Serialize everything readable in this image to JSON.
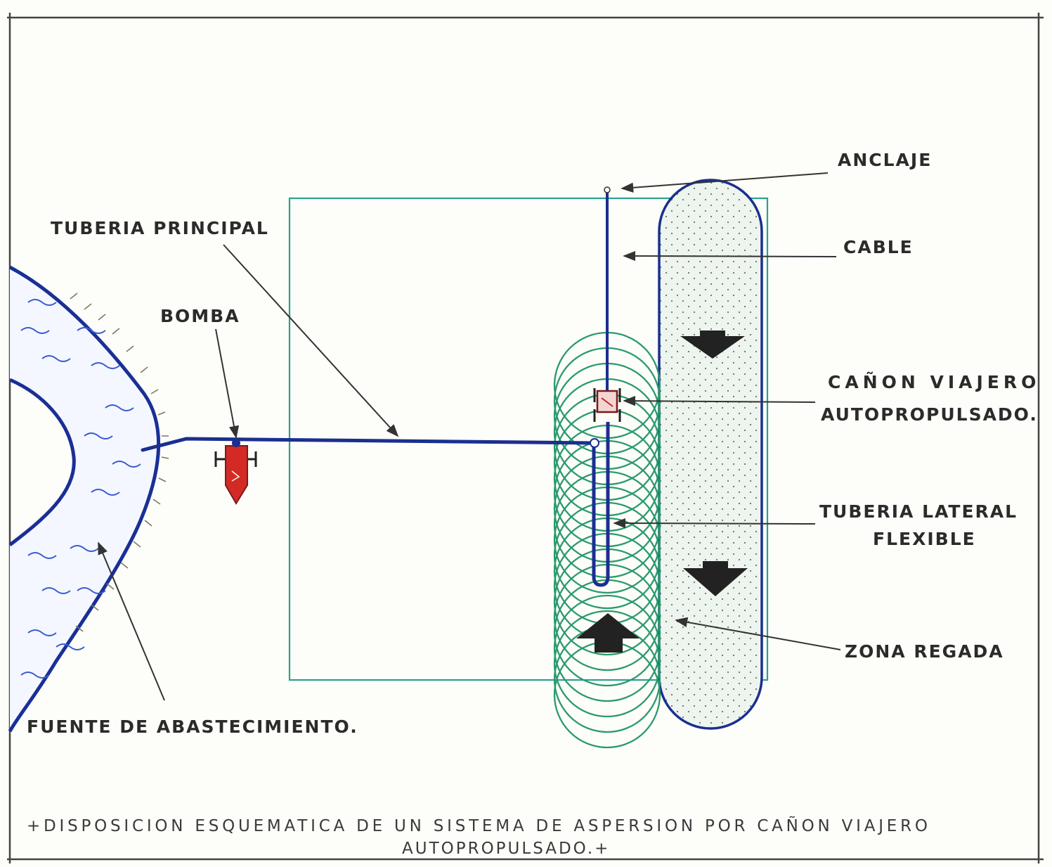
{
  "labels": {
    "anclaje": "ANCLAJE",
    "cable": "CABLE",
    "tuberia_principal": "TUBERIA PRINCIPAL",
    "bomba": "BOMBA",
    "canon_line1": "CAÑON VIAJERO",
    "canon_line2": "AUTOPROPULSADO.",
    "tuberia_lateral_line1": "TUBERIA LATERAL",
    "tuberia_lateral_line2": "FLEXIBLE",
    "zona_regada": "ZONA REGADA",
    "fuente": "FUENTE DE ABASTECIMIENTO."
  },
  "caption": {
    "line1": "+DISPOSICION ESQUEMATICA DE UN SISTEMA DE ASPERSION POR CAÑON VIAJERO",
    "line2": "AUTOPROPULSADO.+"
  },
  "colors": {
    "pipe": "#1b2f8f",
    "river_outline": "#1a2f96",
    "river_waves": "#3a5bd0",
    "pump": "#d42a26",
    "spray_circles": "#2a9a6c",
    "field_outline": "#2aa28f",
    "irrigated_zone_outline": "#1b2f8f",
    "irrigated_zone_fill": "#e9f1ea",
    "direction_arrows": "#222222"
  },
  "icons": {
    "pump": "pump-icon",
    "traveler": "traveler-gun-icon"
  }
}
